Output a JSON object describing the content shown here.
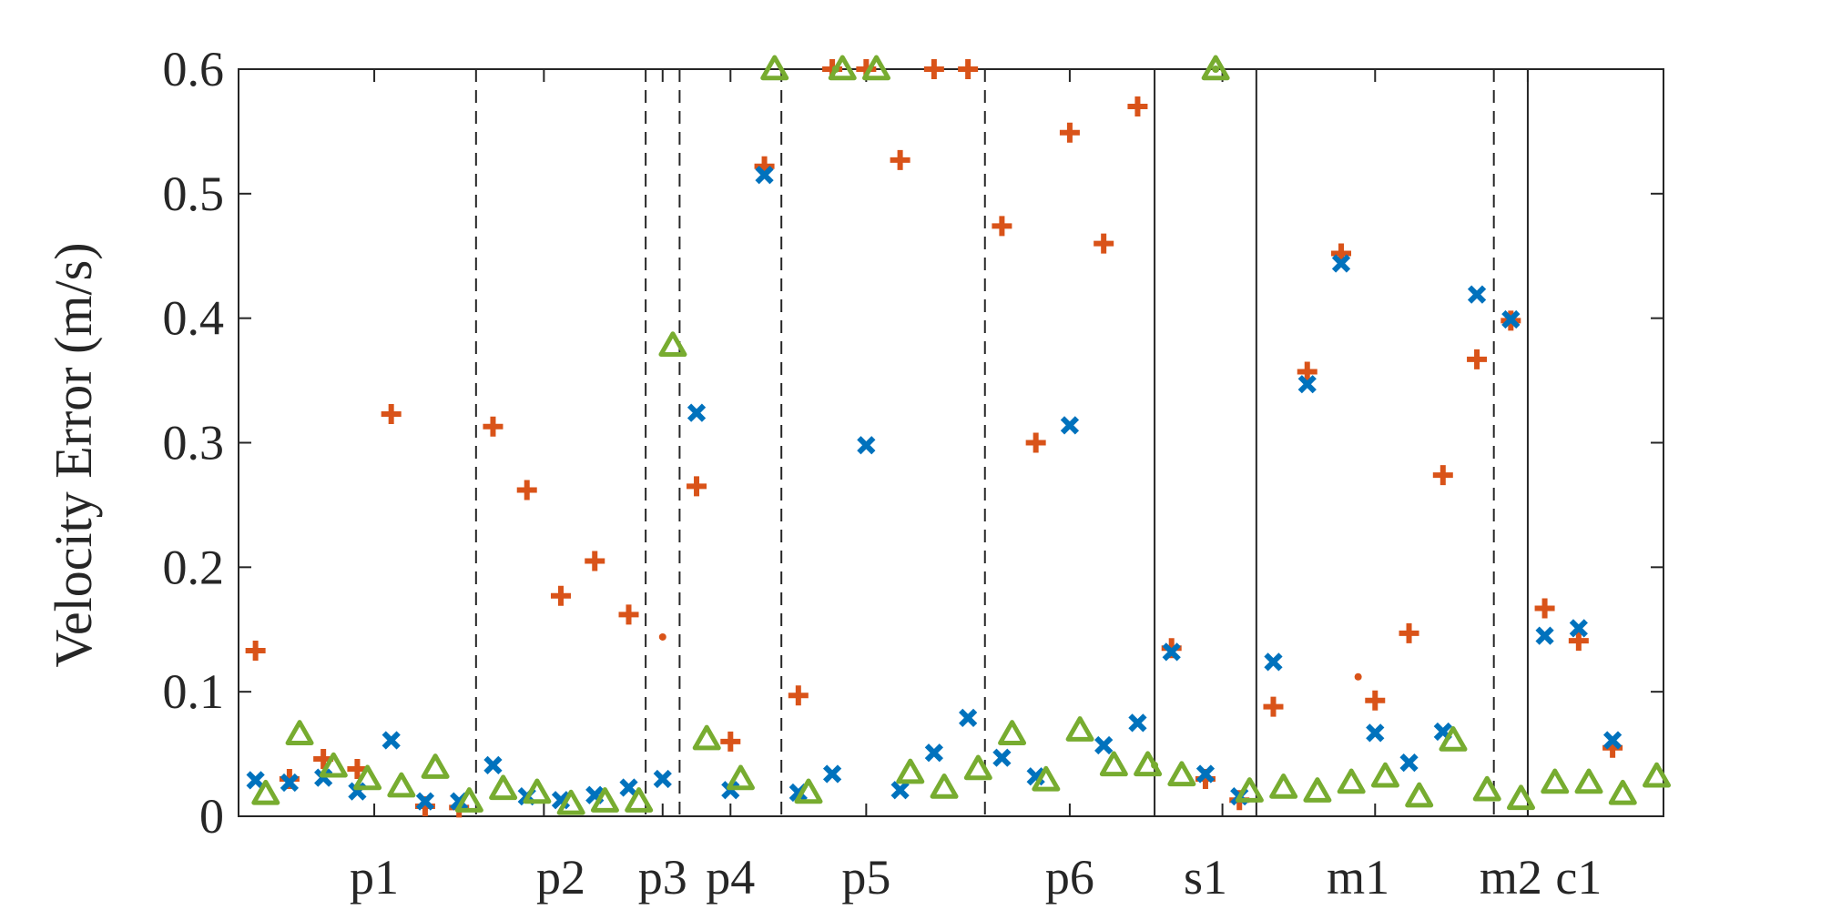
{
  "chart_data": {
    "type": "scatter",
    "title": "",
    "xlabel": "",
    "ylabel": "Velocity Error (m/s)",
    "ylim": [
      0,
      0.6
    ],
    "xlim": [
      0,
      42
    ],
    "yticks": [
      "0",
      "0.1",
      "0.2",
      "0.3",
      "0.4",
      "0.5",
      "0.6"
    ],
    "ytick_values": [
      0,
      0.1,
      0.2,
      0.3,
      0.4,
      0.5,
      0.6
    ],
    "xtick_positions": [
      4,
      9,
      12.5,
      14.5,
      18.5,
      24.5,
      29,
      33.5,
      38
    ],
    "group_labels": [
      {
        "label": "p1",
        "x": 4
      },
      {
        "label": "p2",
        "x": 9.5
      },
      {
        "label": "p3",
        "x": 12.5
      },
      {
        "label": "p4",
        "x": 14.5
      },
      {
        "label": "p5",
        "x": 18.5
      },
      {
        "label": "p6",
        "x": 24.5
      },
      {
        "label": "s1",
        "x": 28.5
      },
      {
        "label": "m1",
        "x": 33
      },
      {
        "label": "m2",
        "x": 37.5
      },
      {
        "label": "c1",
        "x": 39.5
      }
    ],
    "separators": [
      {
        "x": 7,
        "style": "dashed"
      },
      {
        "x": 12,
        "style": "dashed"
      },
      {
        "x": 13,
        "style": "dashed"
      },
      {
        "x": 16,
        "style": "dashed"
      },
      {
        "x": 22,
        "style": "dashed"
      },
      {
        "x": 27,
        "style": "solid"
      },
      {
        "x": 30,
        "style": "solid"
      },
      {
        "x": 37,
        "style": "dashed"
      },
      {
        "x": 38,
        "style": "solid"
      }
    ],
    "series": [
      {
        "name": "plus",
        "marker": "plus",
        "color": "#D95319",
        "points": [
          {
            "x": 0.5,
            "y": 0.133
          },
          {
            "x": 1.5,
            "y": 0.03
          },
          {
            "x": 2.5,
            "y": 0.046
          },
          {
            "x": 3.5,
            "y": 0.038
          },
          {
            "x": 4.5,
            "y": 0.323
          },
          {
            "x": 5.5,
            "y": 0.008
          },
          {
            "x": 6.5,
            "y": 0.007
          },
          {
            "x": 7.5,
            "y": 0.313
          },
          {
            "x": 8.5,
            "y": 0.262
          },
          {
            "x": 9.5,
            "y": 0.177
          },
          {
            "x": 10.5,
            "y": 0.205
          },
          {
            "x": 11.5,
            "y": 0.162
          },
          {
            "x": 13.5,
            "y": 0.265
          },
          {
            "x": 14.5,
            "y": 0.06
          },
          {
            "x": 15.5,
            "y": 0.522
          },
          {
            "x": 16.5,
            "y": 0.097
          },
          {
            "x": 17.5,
            "y": 0.6
          },
          {
            "x": 18.5,
            "y": 0.6
          },
          {
            "x": 19.5,
            "y": 0.527
          },
          {
            "x": 20.5,
            "y": 0.6
          },
          {
            "x": 21.5,
            "y": 0.6
          },
          {
            "x": 22.5,
            "y": 0.474
          },
          {
            "x": 23.5,
            "y": 0.3
          },
          {
            "x": 24.5,
            "y": 0.549
          },
          {
            "x": 25.5,
            "y": 0.46
          },
          {
            "x": 26.5,
            "y": 0.57
          },
          {
            "x": 27.5,
            "y": 0.135
          },
          {
            "x": 28.5,
            "y": 0.03
          },
          {
            "x": 29.5,
            "y": 0.013
          },
          {
            "x": 30.5,
            "y": 0.088
          },
          {
            "x": 31.5,
            "y": 0.357
          },
          {
            "x": 32.5,
            "y": 0.452
          },
          {
            "x": 33.5,
            "y": 0.093
          },
          {
            "x": 34.5,
            "y": 0.147
          },
          {
            "x": 35.5,
            "y": 0.274
          },
          {
            "x": 36.5,
            "y": 0.367
          },
          {
            "x": 37.5,
            "y": 0.398
          },
          {
            "x": 38.5,
            "y": 0.167
          },
          {
            "x": 39.5,
            "y": 0.141
          },
          {
            "x": 40.5,
            "y": 0.055
          }
        ]
      },
      {
        "name": "cross",
        "marker": "x",
        "color": "#0072BD",
        "points": [
          {
            "x": 0.5,
            "y": 0.029
          },
          {
            "x": 1.5,
            "y": 0.027
          },
          {
            "x": 2.5,
            "y": 0.031
          },
          {
            "x": 3.5,
            "y": 0.02
          },
          {
            "x": 4.5,
            "y": 0.061
          },
          {
            "x": 5.5,
            "y": 0.012
          },
          {
            "x": 6.5,
            "y": 0.012
          },
          {
            "x": 7.5,
            "y": 0.041
          },
          {
            "x": 8.5,
            "y": 0.016
          },
          {
            "x": 9.5,
            "y": 0.013
          },
          {
            "x": 10.5,
            "y": 0.017
          },
          {
            "x": 11.5,
            "y": 0.023
          },
          {
            "x": 12.5,
            "y": 0.03
          },
          {
            "x": 13.5,
            "y": 0.324
          },
          {
            "x": 14.5,
            "y": 0.021
          },
          {
            "x": 15.5,
            "y": 0.515
          },
          {
            "x": 16.5,
            "y": 0.019
          },
          {
            "x": 17.5,
            "y": 0.034
          },
          {
            "x": 18.5,
            "y": 0.298
          },
          {
            "x": 19.5,
            "y": 0.021
          },
          {
            "x": 20.5,
            "y": 0.051
          },
          {
            "x": 21.5,
            "y": 0.079
          },
          {
            "x": 22.5,
            "y": 0.047
          },
          {
            "x": 23.5,
            "y": 0.032
          },
          {
            "x": 24.5,
            "y": 0.314
          },
          {
            "x": 25.5,
            "y": 0.057
          },
          {
            "x": 26.5,
            "y": 0.075
          },
          {
            "x": 27.5,
            "y": 0.132
          },
          {
            "x": 28.5,
            "y": 0.034
          },
          {
            "x": 29.5,
            "y": 0.016
          },
          {
            "x": 30.5,
            "y": 0.124
          },
          {
            "x": 31.5,
            "y": 0.347
          },
          {
            "x": 32.5,
            "y": 0.444
          },
          {
            "x": 33.5,
            "y": 0.067
          },
          {
            "x": 34.5,
            "y": 0.043
          },
          {
            "x": 35.5,
            "y": 0.068
          },
          {
            "x": 36.5,
            "y": 0.419
          },
          {
            "x": 37.5,
            "y": 0.399
          },
          {
            "x": 38.5,
            "y": 0.145
          },
          {
            "x": 39.5,
            "y": 0.151
          },
          {
            "x": 40.5,
            "y": 0.061
          }
        ]
      },
      {
        "name": "triangle",
        "marker": "triangle",
        "color": "#77AC30",
        "points": [
          {
            "x": 0.8,
            "y": 0.018
          },
          {
            "x": 1.8,
            "y": 0.066
          },
          {
            "x": 2.8,
            "y": 0.04
          },
          {
            "x": 3.8,
            "y": 0.03
          },
          {
            "x": 4.8,
            "y": 0.024
          },
          {
            "x": 5.8,
            "y": 0.039
          },
          {
            "x": 6.8,
            "y": 0.012
          },
          {
            "x": 7.8,
            "y": 0.022
          },
          {
            "x": 8.8,
            "y": 0.019
          },
          {
            "x": 9.8,
            "y": 0.01
          },
          {
            "x": 10.8,
            "y": 0.012
          },
          {
            "x": 11.8,
            "y": 0.012
          },
          {
            "x": 12.8,
            "y": 0.378
          },
          {
            "x": 13.8,
            "y": 0.062
          },
          {
            "x": 14.8,
            "y": 0.03
          },
          {
            "x": 15.8,
            "y": 0.6
          },
          {
            "x": 16.8,
            "y": 0.019
          },
          {
            "x": 17.8,
            "y": 0.6
          },
          {
            "x": 18.8,
            "y": 0.6
          },
          {
            "x": 19.8,
            "y": 0.035
          },
          {
            "x": 20.8,
            "y": 0.023
          },
          {
            "x": 21.8,
            "y": 0.038
          },
          {
            "x": 22.8,
            "y": 0.066
          },
          {
            "x": 23.8,
            "y": 0.029
          },
          {
            "x": 24.8,
            "y": 0.069
          },
          {
            "x": 25.8,
            "y": 0.041
          },
          {
            "x": 26.8,
            "y": 0.041
          },
          {
            "x": 27.8,
            "y": 0.033
          },
          {
            "x": 28.8,
            "y": 0.6
          },
          {
            "x": 29.8,
            "y": 0.02
          },
          {
            "x": 30.8,
            "y": 0.023
          },
          {
            "x": 31.8,
            "y": 0.02
          },
          {
            "x": 32.8,
            "y": 0.027
          },
          {
            "x": 33.8,
            "y": 0.032
          },
          {
            "x": 34.8,
            "y": 0.016
          },
          {
            "x": 35.8,
            "y": 0.061
          },
          {
            "x": 36.8,
            "y": 0.021
          },
          {
            "x": 37.8,
            "y": 0.014
          },
          {
            "x": 38.8,
            "y": 0.027
          },
          {
            "x": 39.8,
            "y": 0.027
          },
          {
            "x": 40.8,
            "y": 0.018
          },
          {
            "x": 41.8,
            "y": 0.032
          }
        ]
      }
    ],
    "small_dots": [
      {
        "x": 12.5,
        "y": 0.144,
        "color": "#D95319"
      },
      {
        "x": 33,
        "y": 0.112,
        "color": "#D95319"
      },
      {
        "x": 17.6,
        "y": 0.6,
        "color": "#77AC30"
      },
      {
        "x": 27,
        "y": 0.041,
        "color": "#77AC30"
      },
      {
        "x": 28.8,
        "y": 0.6,
        "color": "#77AC30"
      }
    ]
  }
}
